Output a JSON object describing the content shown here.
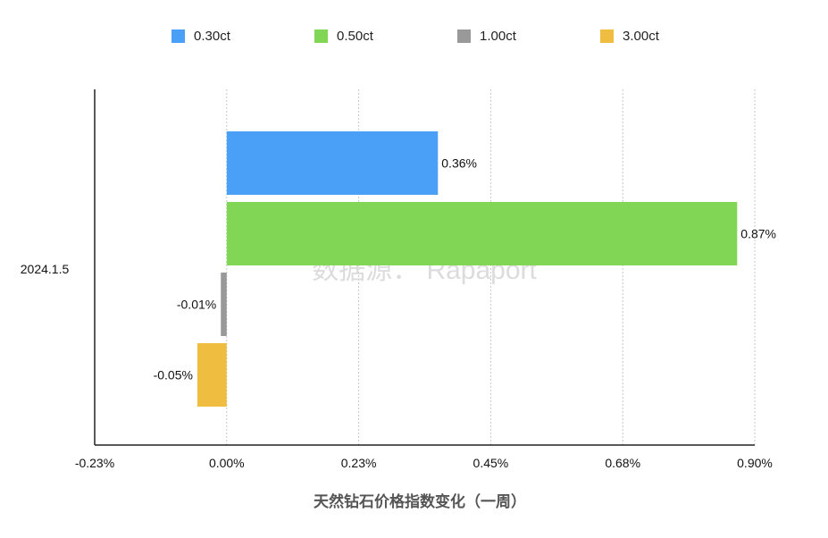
{
  "chart_data": {
    "type": "bar",
    "orientation": "horizontal",
    "categories": [
      "2024.1.5"
    ],
    "series": [
      {
        "name": "0.30ct",
        "color": "#4aa0f7",
        "values": [
          0.36
        ],
        "label": "0.36%"
      },
      {
        "name": "0.50ct",
        "color": "#82d655",
        "values": [
          0.87
        ],
        "label": "0.87%"
      },
      {
        "name": "1.00ct",
        "color": "#999999",
        "values": [
          -0.01
        ],
        "label": "-0.01%"
      },
      {
        "name": "3.00ct",
        "color": "#efbd40",
        "values": [
          -0.05
        ],
        "label": "-0.05%"
      }
    ],
    "xlim": [
      -0.225,
      0.9
    ],
    "xticks": [
      {
        "value": -0.225,
        "label": "-0.23%"
      },
      {
        "value": 0,
        "label": "0.00%"
      },
      {
        "value": 0.225,
        "label": "0.23%"
      },
      {
        "value": 0.45,
        "label": "0.45%"
      },
      {
        "value": 0.675,
        "label": "0.68%"
      },
      {
        "value": 0.9,
        "label": "0.90%"
      }
    ],
    "xlabel": "天然钻石价格指数变化（一周）",
    "watermark": "数据源： Rapaport",
    "grid": "vertical dotted",
    "legend_position": "top"
  }
}
